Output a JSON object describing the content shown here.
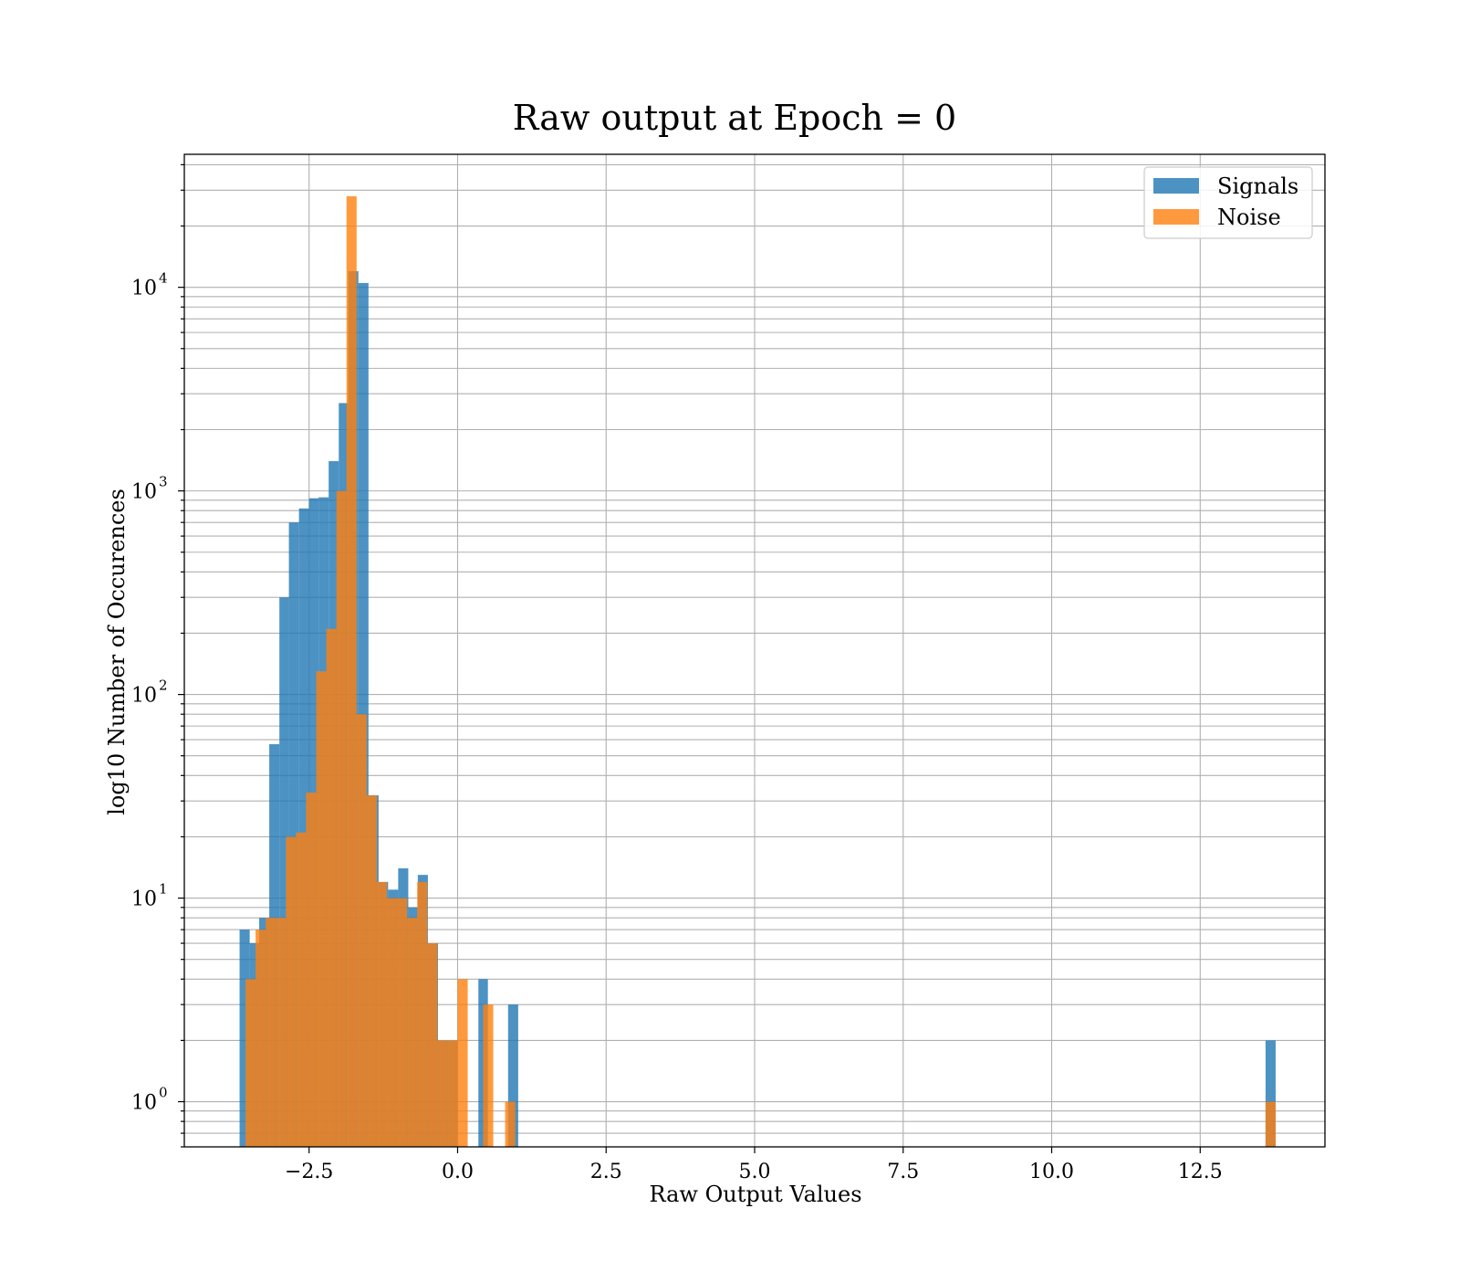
{
  "chart_data": {
    "type": "bar",
    "subtype": "histogram",
    "title": "Raw output at Epoch = 0",
    "xlabel": "Raw Output Values",
    "ylabel": "log10 Number of Occurences",
    "xlim": [
      -4.6,
      14.6
    ],
    "ylim": [
      0.6,
      45000
    ],
    "yscale": "log",
    "grid": "both (major and minor)",
    "legend_position": "top-right",
    "x_ticks": [
      {
        "value": -2.5,
        "label": "−2.5"
      },
      {
        "value": 0.0,
        "label": "0.0"
      },
      {
        "value": 2.5,
        "label": "2.5"
      },
      {
        "value": 5.0,
        "label": "5.0"
      },
      {
        "value": 7.5,
        "label": "7.5"
      },
      {
        "value": 10.0,
        "label": "10.0"
      },
      {
        "value": 12.5,
        "label": "12.5"
      }
    ],
    "y_ticks": [
      {
        "value": 1,
        "base": "10",
        "exponent": "0"
      },
      {
        "value": 10,
        "base": "10",
        "exponent": "1"
      },
      {
        "value": 100,
        "base": "10",
        "exponent": "2"
      },
      {
        "value": 1000,
        "base": "10",
        "exponent": "3"
      },
      {
        "value": 10000,
        "base": "10",
        "exponent": "4"
      }
    ],
    "series": [
      {
        "name": "Signals",
        "color": "#1f77b4",
        "opacity": 0.8,
        "bins": [
          {
            "x0": -3.67,
            "x1": -3.5,
            "count": 7
          },
          {
            "x0": -3.5,
            "x1": -3.34,
            "count": 6
          },
          {
            "x0": -3.34,
            "x1": -3.17,
            "count": 8
          },
          {
            "x0": -3.17,
            "x1": -3.0,
            "count": 57
          },
          {
            "x0": -3.0,
            "x1": -2.84,
            "count": 300
          },
          {
            "x0": -2.84,
            "x1": -2.67,
            "count": 700
          },
          {
            "x0": -2.67,
            "x1": -2.5,
            "count": 820
          },
          {
            "x0": -2.5,
            "x1": -2.34,
            "count": 920
          },
          {
            "x0": -2.34,
            "x1": -2.17,
            "count": 930
          },
          {
            "x0": -2.17,
            "x1": -2.0,
            "count": 1400
          },
          {
            "x0": -2.0,
            "x1": -1.84,
            "count": 2700
          },
          {
            "x0": -1.84,
            "x1": -1.67,
            "count": 12000
          },
          {
            "x0": -1.67,
            "x1": -1.5,
            "count": 10500
          },
          {
            "x0": -1.5,
            "x1": -1.33,
            "count": 32
          },
          {
            "x0": -1.33,
            "x1": -1.17,
            "count": 12
          },
          {
            "x0": -1.17,
            "x1": -1.0,
            "count": 11
          },
          {
            "x0": -1.0,
            "x1": -0.83,
            "count": 14
          },
          {
            "x0": -0.83,
            "x1": -0.67,
            "count": 9
          },
          {
            "x0": -0.67,
            "x1": -0.5,
            "count": 13
          },
          {
            "x0": -0.5,
            "x1": -0.33,
            "count": 6
          },
          {
            "x0": -0.33,
            "x1": -0.16,
            "count": 2
          },
          {
            "x0": -0.16,
            "x1": 0.0,
            "count": 2
          },
          {
            "x0": 0.35,
            "x1": 0.51,
            "count": 4
          },
          {
            "x0": 0.85,
            "x1": 1.02,
            "count": 3
          },
          {
            "x0": 13.6,
            "x1": 13.77,
            "count": 2
          }
        ]
      },
      {
        "name": "Noise",
        "color": "#ff7f0e",
        "opacity": 0.8,
        "bins": [
          {
            "x0": -3.57,
            "x1": -3.4,
            "count": 4
          },
          {
            "x0": -3.4,
            "x1": -3.23,
            "count": 7
          },
          {
            "x0": -3.23,
            "x1": -3.06,
            "count": 8
          },
          {
            "x0": -3.06,
            "x1": -2.89,
            "count": 8
          },
          {
            "x0": -2.89,
            "x1": -2.72,
            "count": 20
          },
          {
            "x0": -2.72,
            "x1": -2.55,
            "count": 21
          },
          {
            "x0": -2.55,
            "x1": -2.38,
            "count": 33
          },
          {
            "x0": -2.38,
            "x1": -2.21,
            "count": 130
          },
          {
            "x0": -2.21,
            "x1": -2.04,
            "count": 210
          },
          {
            "x0": -2.04,
            "x1": -1.87,
            "count": 1000
          },
          {
            "x0": -1.87,
            "x1": -1.7,
            "count": 28000
          },
          {
            "x0": -1.7,
            "x1": -1.53,
            "count": 80
          },
          {
            "x0": -1.53,
            "x1": -1.36,
            "count": 32
          },
          {
            "x0": -1.36,
            "x1": -1.19,
            "count": 12
          },
          {
            "x0": -1.19,
            "x1": -1.02,
            "count": 10
          },
          {
            "x0": -1.02,
            "x1": -0.85,
            "count": 10
          },
          {
            "x0": -0.85,
            "x1": -0.68,
            "count": 8
          },
          {
            "x0": -0.68,
            "x1": -0.51,
            "count": 12
          },
          {
            "x0": -0.51,
            "x1": -0.34,
            "count": 6
          },
          {
            "x0": -0.34,
            "x1": -0.17,
            "count": 2
          },
          {
            "x0": -0.17,
            "x1": 0.0,
            "count": 2
          },
          {
            "x0": 0.0,
            "x1": 0.17,
            "count": 4
          },
          {
            "x0": 0.43,
            "x1": 0.6,
            "count": 3
          },
          {
            "x0": 0.8,
            "x1": 0.97,
            "count": 1
          },
          {
            "x0": 13.6,
            "x1": 13.77,
            "count": 1
          }
        ]
      }
    ]
  }
}
